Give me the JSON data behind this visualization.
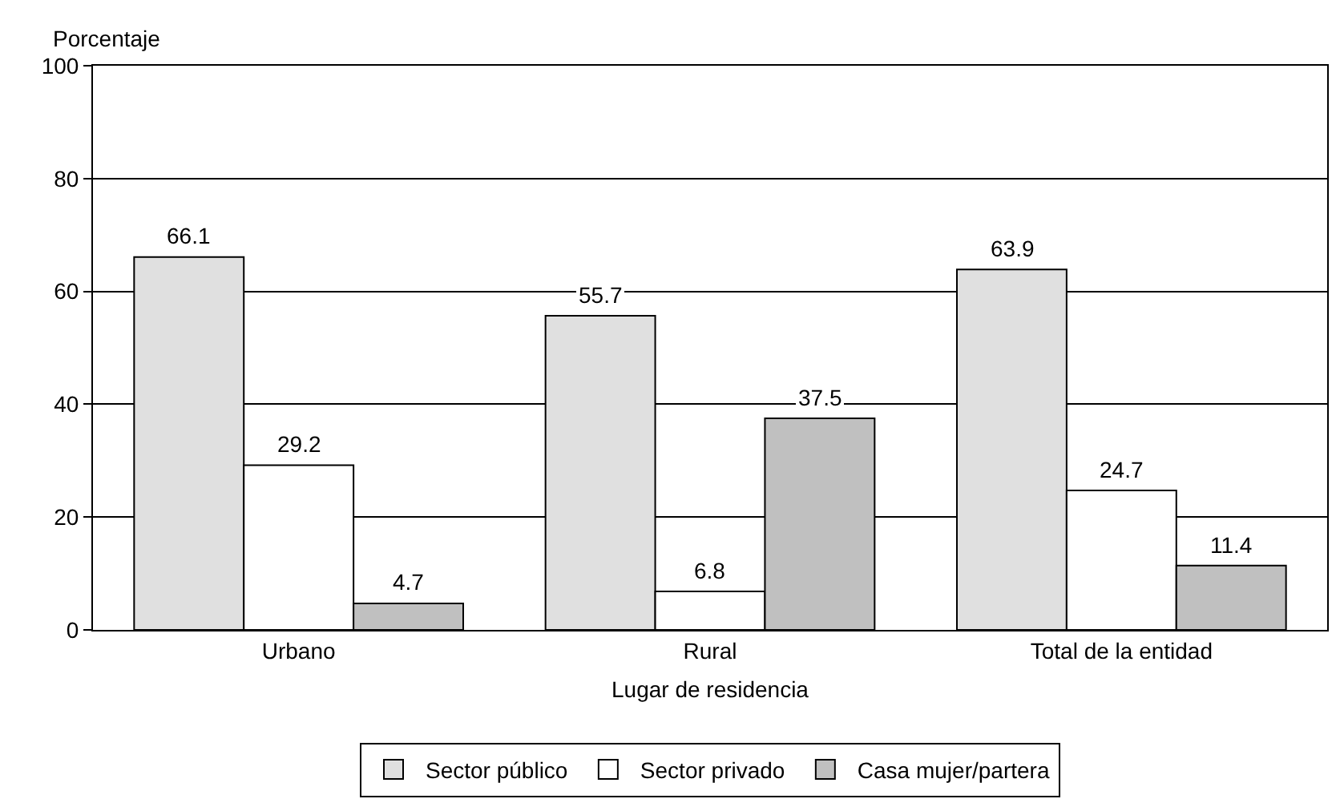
{
  "chart_data": {
    "type": "bar",
    "ylabel": "Porcentaje",
    "xlabel": "Lugar de residencia",
    "categories": [
      "Urbano",
      "Rural",
      "Total de la entidad"
    ],
    "series": [
      {
        "name": "Sector público",
        "color": "#e0e0e0",
        "values": [
          66.1,
          55.7,
          63.9
        ]
      },
      {
        "name": "Sector privado",
        "color": "#ffffff",
        "values": [
          29.2,
          6.8,
          24.7
        ]
      },
      {
        "name": "Casa mujer/partera",
        "color": "#c0c0c0",
        "values": [
          4.7,
          37.5,
          11.4
        ]
      }
    ],
    "ylim": [
      0,
      100
    ],
    "yticks": [
      0,
      20,
      40,
      60,
      80,
      100
    ],
    "grid": "y",
    "data_labels": true,
    "legend": "bottom"
  }
}
